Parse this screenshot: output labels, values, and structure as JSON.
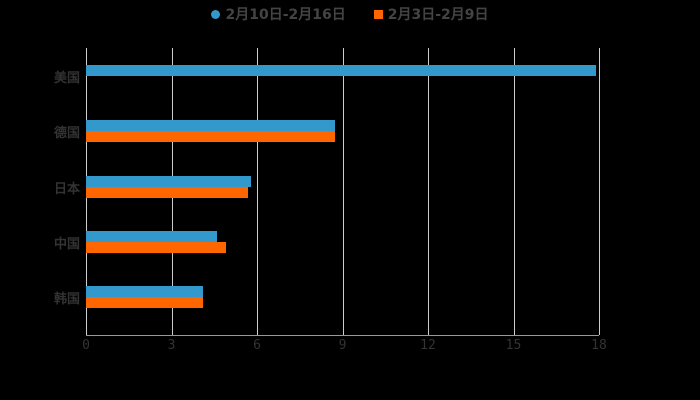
{
  "chart_data": {
    "type": "bar",
    "orientation": "horizontal",
    "title": "",
    "categories": [
      "美国",
      "德国",
      "日本",
      "中国",
      "韩国"
    ],
    "series": [
      {
        "name": "2月10日-2月16日",
        "color": "#3399cc",
        "values": [
          17.9,
          8.75,
          5.8,
          4.6,
          4.1
        ]
      },
      {
        "name": "2月3日-2月9日",
        "color": "#ff6600",
        "values": [
          null,
          8.75,
          5.7,
          4.9,
          4.1
        ]
      }
    ],
    "xlabel": "",
    "ylabel": "",
    "xlim": [
      0,
      18
    ],
    "xticks": [
      "0",
      "3",
      "6",
      "9",
      "12",
      "15",
      "18"
    ],
    "grid": true,
    "legend_position": "top"
  },
  "legend": [
    {
      "label": "2月10日-2月16日",
      "color": "#3399cc"
    },
    {
      "label": "2月3日-2月9日",
      "color": "#ff6600"
    }
  ]
}
